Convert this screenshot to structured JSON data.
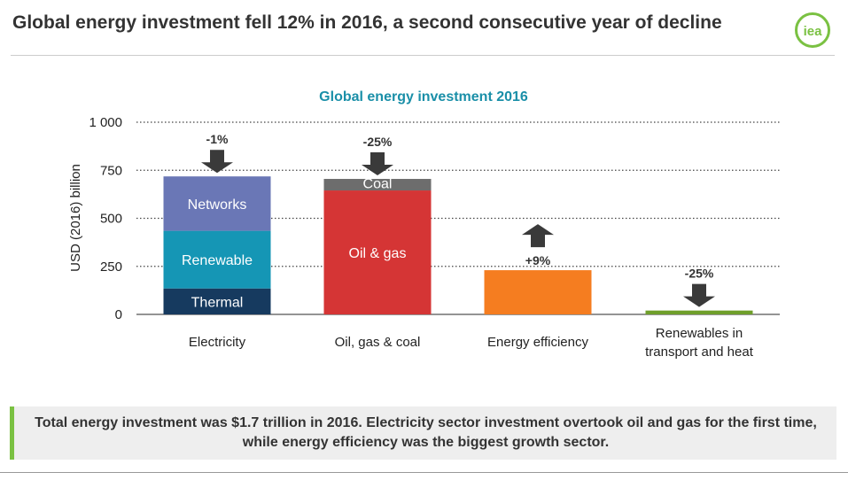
{
  "slide": {
    "title": "Global energy investment fell 12% in 2016, a second consecutive year of decline",
    "logo_text": "iea",
    "takeaway": "Total energy investment was $1.7 trillion in 2016. Electricity sector investment overtook oil and gas for the first time, while energy efficiency was the biggest growth sector."
  },
  "colors": {
    "networks": "#6a77b6",
    "renewable": "#1596b5",
    "thermal": "#163a5f",
    "oil_gas": "#d53535",
    "coal": "#6d6d6d",
    "energy_efficiency": "#f57d20",
    "renewables_transport": "#6f9f2b",
    "arrow": "#3a3a3a",
    "chart_title": "#1a8fa8",
    "accent_bar": "#7ac142",
    "logo": "#7ac142"
  },
  "chart_data": {
    "type": "bar",
    "stacked": true,
    "title": "Global energy investment 2016",
    "ylabel": "USD (2016) billion",
    "xlabel": "",
    "ylim": [
      0,
      1000
    ],
    "yticks": [
      0,
      250,
      500,
      750,
      1000
    ],
    "ytick_labels": [
      "0",
      "250",
      "500",
      "750",
      "1 000"
    ],
    "grid": "horizontal dotted",
    "legend": "none",
    "categories": [
      {
        "label_lines": [
          "Electricity"
        ],
        "segments": [
          {
            "name": "Thermal",
            "value": 135,
            "color_key": "thermal"
          },
          {
            "name": "Renewable",
            "value": 300,
            "color_key": "renewable"
          },
          {
            "name": "Networks",
            "value": 283,
            "color_key": "networks"
          }
        ],
        "change": "-1%",
        "direction": "down"
      },
      {
        "label_lines": [
          "Oil, gas & coal"
        ],
        "segments": [
          {
            "name": "Oil & gas",
            "value": 645,
            "color_key": "oil_gas"
          },
          {
            "name": "Coal",
            "value": 60,
            "color_key": "coal"
          }
        ],
        "change": "-25%",
        "direction": "down"
      },
      {
        "label_lines": [
          "Energy efficiency"
        ],
        "segments": [
          {
            "name": "",
            "value": 230,
            "color_key": "energy_efficiency"
          }
        ],
        "change": "+9%",
        "direction": "up"
      },
      {
        "label_lines": [
          "Renewables in",
          "transport and heat"
        ],
        "segments": [
          {
            "name": "",
            "value": 20,
            "color_key": "renewables_transport"
          }
        ],
        "change": "-25%",
        "direction": "down"
      }
    ]
  }
}
